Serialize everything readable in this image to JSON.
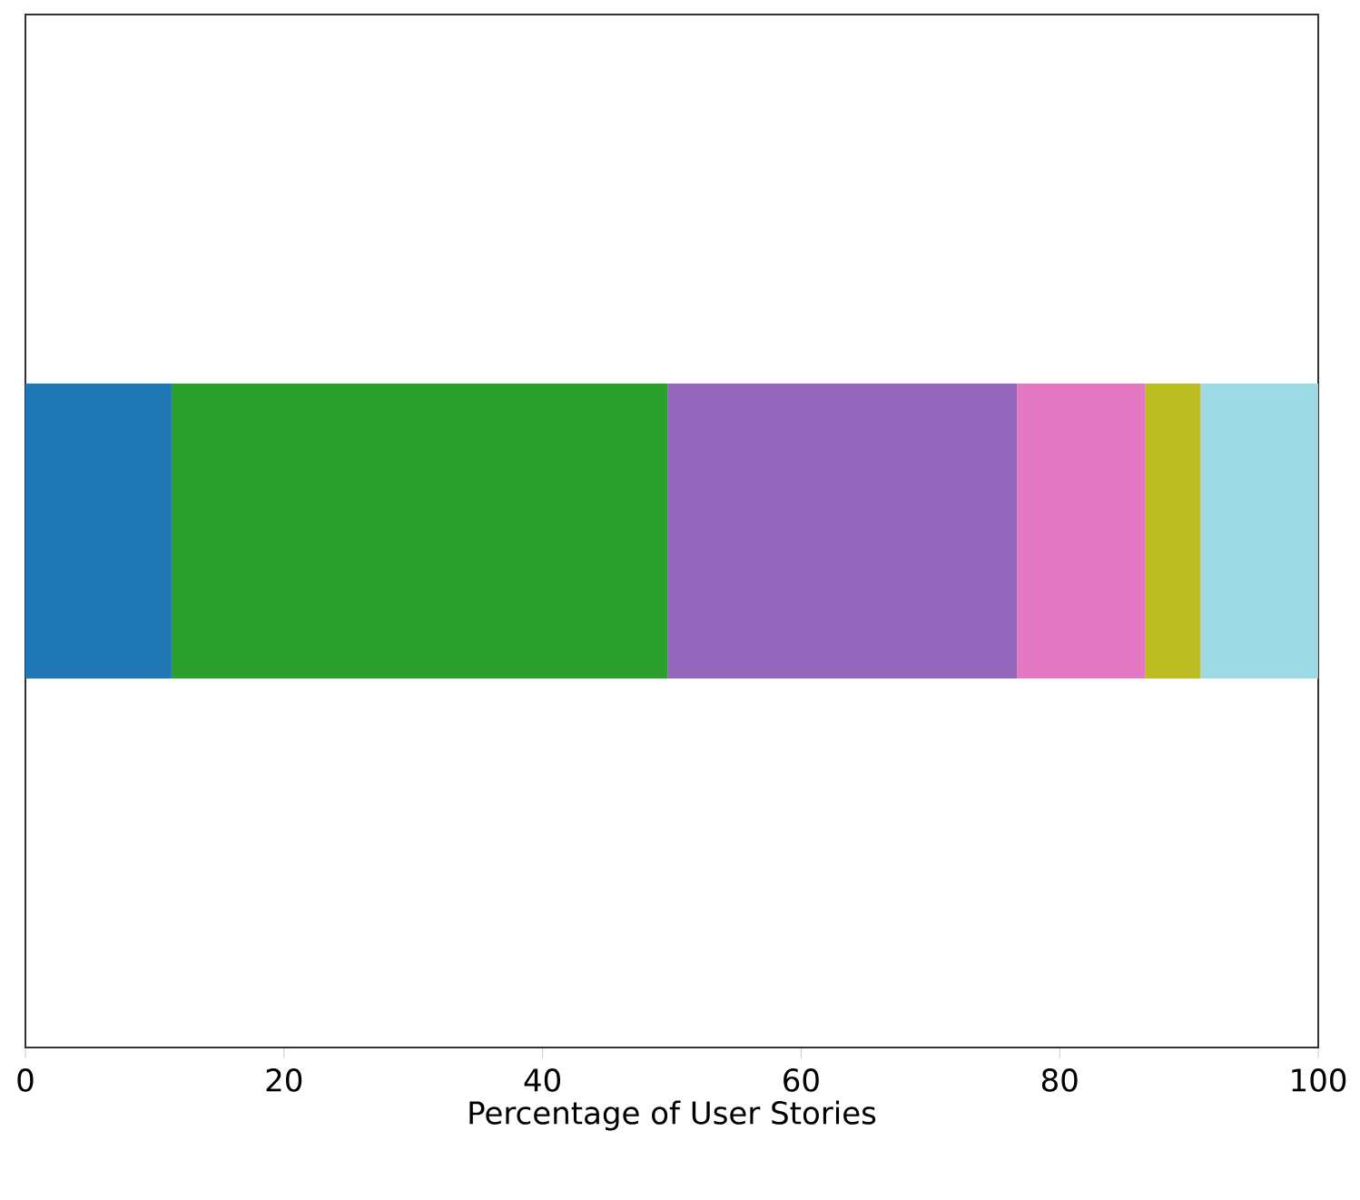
{
  "chart_data": {
    "type": "bar",
    "orientation": "horizontal",
    "stacked": true,
    "xlabel": "Percentage of User Stories",
    "categories": [
      null
    ],
    "series": [
      {
        "color": "#1f77b4",
        "values": [
          11.3
        ]
      },
      {
        "color": "#2ca02c",
        "values": [
          38.4
        ]
      },
      {
        "color": "#9467bd",
        "values": [
          27.0
        ]
      },
      {
        "color": "#e377c2",
        "values": [
          9.9
        ]
      },
      {
        "color": "#bcbd22",
        "values": [
          4.3
        ]
      },
      {
        "color": "#9edae5",
        "values": [
          9.1
        ]
      }
    ],
    "xlim": [
      0,
      100
    ],
    "xticks": [
      0,
      20,
      40,
      60,
      80,
      100
    ]
  }
}
